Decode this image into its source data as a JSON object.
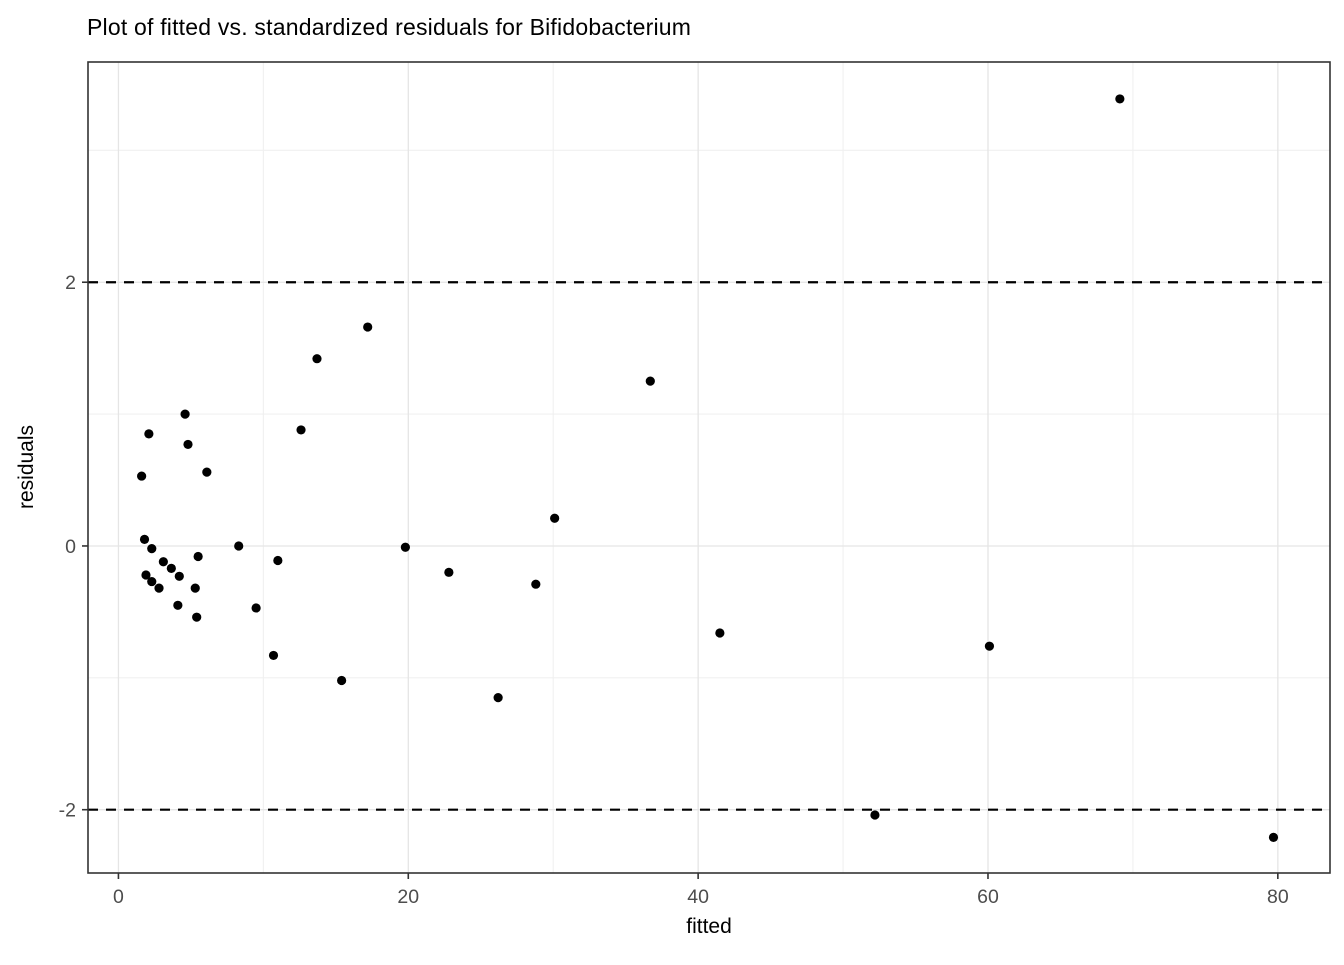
{
  "figure": {
    "title": "Plot of fitted vs. standardized residuals for Bifidobacterium"
  },
  "chart_data": {
    "type": "scatter",
    "title": "Plot of fitted vs. standardized residuals for Bifidobacterium",
    "xlabel": "fitted",
    "ylabel": "residuals",
    "xlim": [
      -2.1,
      83.6
    ],
    "ylim": [
      -2.48,
      3.67
    ],
    "x_ticks": [
      0,
      20,
      40,
      60,
      80
    ],
    "y_ticks": [
      -2,
      0,
      2
    ],
    "x_minor_gridlines": [
      10,
      30,
      50,
      70
    ],
    "y_minor_gridlines": [
      -1,
      1,
      3
    ],
    "hlines": {
      "values": [
        2,
        -2
      ],
      "style": "dashed",
      "color": "#000000"
    },
    "grid": true,
    "legend": false,
    "point_color": "#000000",
    "point_radius_px": 4.6,
    "colors": {
      "title": "#000000",
      "axis_title": "#000000",
      "tick_label": "#4d4d4d",
      "grid_major": "#e5e5e5",
      "grid_minor": "#f0f0f0",
      "panel_border": "#333333",
      "background": "#ffffff"
    },
    "points": [
      [
        1.6,
        0.53
      ],
      [
        2.1,
        0.85
      ],
      [
        4.6,
        1.0
      ],
      [
        4.8,
        0.77
      ],
      [
        6.1,
        0.56
      ],
      [
        1.8,
        0.05
      ],
      [
        2.3,
        -0.02
      ],
      [
        3.1,
        -0.12
      ],
      [
        3.65,
        -0.17
      ],
      [
        4.2,
        -0.23
      ],
      [
        5.5,
        -0.08
      ],
      [
        1.9,
        -0.22
      ],
      [
        2.3,
        -0.27
      ],
      [
        2.8,
        -0.32
      ],
      [
        5.3,
        -0.32
      ],
      [
        4.1,
        -0.45
      ],
      [
        5.4,
        -0.54
      ],
      [
        8.3,
        0.0
      ],
      [
        9.5,
        -0.47
      ],
      [
        11.0,
        -0.11
      ],
      [
        10.7,
        -0.83
      ],
      [
        12.6,
        0.88
      ],
      [
        13.7,
        1.42
      ],
      [
        17.2,
        1.66
      ],
      [
        15.4,
        -1.02
      ],
      [
        19.8,
        -0.01
      ],
      [
        22.8,
        -0.2
      ],
      [
        26.2,
        -1.15
      ],
      [
        28.8,
        -0.29
      ],
      [
        30.1,
        0.21
      ],
      [
        36.7,
        1.25
      ],
      [
        41.5,
        -0.66
      ],
      [
        52.2,
        -2.04
      ],
      [
        60.1,
        -0.76
      ],
      [
        69.1,
        3.39
      ],
      [
        79.7,
        -2.21
      ]
    ]
  }
}
